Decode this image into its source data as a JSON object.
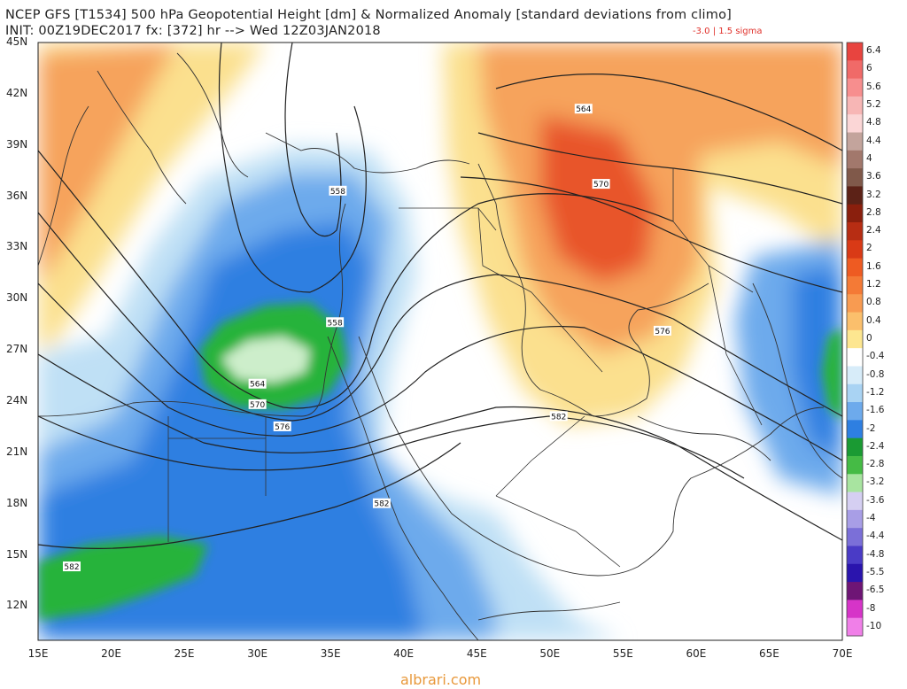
{
  "header": {
    "title": "NCEP GFS [T1534] 500 hPa Geopotential Height [dm] & Normalized Anomaly [standard deviations from climo]",
    "init": "INIT: 00Z19DEC2017 fx: [372] hr --> Wed 12Z03JAN2018",
    "anomaly_note": "-3.0 | 1.5 sigma"
  },
  "map": {
    "region": "Eastern Mediterranean, Middle East and Northeast Africa",
    "lat_labels": [
      "45N",
      "42N",
      "39N",
      "36N",
      "33N",
      "30N",
      "27N",
      "24N",
      "21N",
      "18N",
      "15N",
      "12N"
    ],
    "lon_labels": [
      "15E",
      "20E",
      "25E",
      "30E",
      "35E",
      "40E",
      "45E",
      "50E",
      "55E",
      "60E",
      "65E",
      "70E"
    ],
    "contour_labels": [
      {
        "text": "564",
        "lon": 52.3,
        "lat": 41.1
      },
      {
        "text": "570",
        "lon": 53.5,
        "lat": 36.7
      },
      {
        "text": "558",
        "lon": 35.5,
        "lat": 36.3
      },
      {
        "text": "558",
        "lon": 35.3,
        "lat": 28.6
      },
      {
        "text": "564",
        "lon": 30.0,
        "lat": 25.0
      },
      {
        "text": "570",
        "lon": 30.0,
        "lat": 23.8
      },
      {
        "text": "576",
        "lon": 31.7,
        "lat": 22.5
      },
      {
        "text": "576",
        "lon": 57.7,
        "lat": 28.1
      },
      {
        "text": "582",
        "lon": 50.6,
        "lat": 23.1
      },
      {
        "text": "582",
        "lon": 38.5,
        "lat": 18.0
      },
      {
        "text": "582",
        "lon": 17.3,
        "lat": 14.3
      }
    ],
    "colors": {
      "positive_strong": "#e8552a",
      "positive": "#f6a35b",
      "positive_weak": "#fbe08e",
      "negative_weak": "#bfe0f5",
      "negative": "#4d9be6",
      "negative_strong": "#1d5fd6",
      "green_strong": "#25b33a",
      "green_light": "#cdeecb"
    }
  },
  "colorbar": {
    "labels": [
      "6.4",
      "6",
      "5.6",
      "5.2",
      "4.8",
      "4.4",
      "4",
      "3.6",
      "3.2",
      "2.8",
      "2.4",
      "2",
      "1.6",
      "1.2",
      "0.8",
      "0.4",
      "0",
      "-0.4",
      "-0.8",
      "-1.2",
      "-1.6",
      "-2",
      "-2.4",
      "-2.8",
      "-3.2",
      "-3.6",
      "-4",
      "-4.4",
      "-4.8",
      "-5.5",
      "-6.5",
      "-8",
      "-10"
    ],
    "colors": [
      "#e8443f",
      "#f06a68",
      "#f78e8e",
      "#f7b6b5",
      "#fbd6d6",
      "#c3a49c",
      "#a2786c",
      "#80594a",
      "#5c2217",
      "#8a1f0d",
      "#b72d13",
      "#d93a16",
      "#ee5b22",
      "#f47a36",
      "#f89b51",
      "#fbbf6c",
      "#fde690",
      "#ffffff",
      "#d7ecf9",
      "#a9d3f3",
      "#6daaec",
      "#2e7fe1",
      "#1a9a33",
      "#45bb45",
      "#a8e4a0",
      "#d5cff2",
      "#a89ee6",
      "#7b6fd8",
      "#4a3bc6",
      "#2a14ad",
      "#6e1575",
      "#d634c8",
      "#f07fe8"
    ]
  },
  "watermark": "albrari.com"
}
